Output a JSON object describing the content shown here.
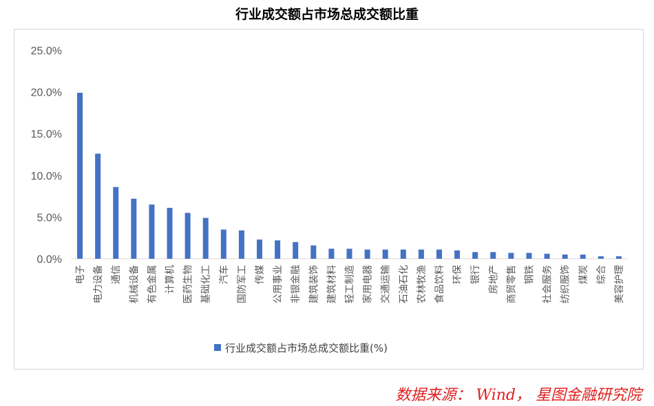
{
  "title": "行业成交额占市场总成交额比重",
  "source": "数据来源： Wind， 星图金融研究院",
  "chart_data": {
    "type": "bar",
    "title": "行业成交额占市场总成交额比重",
    "xlabel": "",
    "ylabel": "",
    "ylim": [
      0,
      25
    ],
    "yticks": [
      "0.0%",
      "5.0%",
      "10.0%",
      "15.0%",
      "20.0%",
      "25.0%"
    ],
    "grid": false,
    "legend_position": "bottom",
    "bar_color": "#4472c4",
    "categories": [
      "电子",
      "电力设备",
      "通信",
      "机械设备",
      "有色金属",
      "计算机",
      "医药生物",
      "基础化工",
      "汽车",
      "国防军工",
      "传媒",
      "公用事业",
      "非银金融",
      "建筑装饰",
      "建筑材料",
      "轻工制造",
      "家用电器",
      "交通运输",
      "石油石化",
      "农林牧渔",
      "食品饮料",
      "环保",
      "银行",
      "房地产",
      "商贸零售",
      "钢铁",
      "社会服务",
      "纺织服饰",
      "煤炭",
      "综合",
      "美容护理"
    ],
    "series": [
      {
        "name": "行业成交额占市场总成交额比重(%)",
        "values": [
          19.9,
          12.6,
          8.6,
          7.2,
          6.5,
          6.1,
          5.5,
          4.9,
          3.5,
          3.4,
          2.3,
          2.2,
          2.0,
          1.6,
          1.2,
          1.2,
          1.1,
          1.1,
          1.1,
          1.1,
          1.1,
          1.0,
          0.8,
          0.8,
          0.7,
          0.7,
          0.6,
          0.5,
          0.5,
          0.3,
          0.3
        ]
      }
    ]
  }
}
